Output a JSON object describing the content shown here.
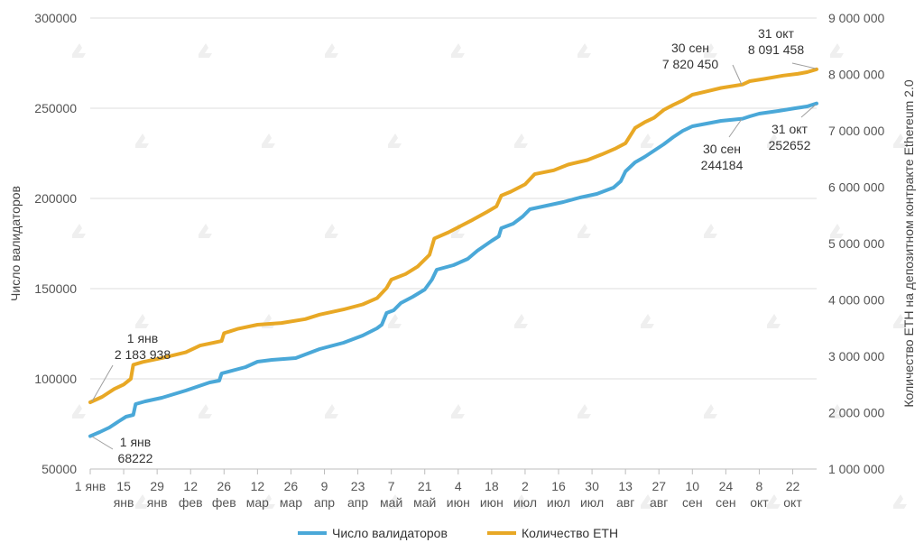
{
  "chart_data": {
    "type": "line",
    "ylabel": "Число валидаторов",
    "y2label": "Количество ETH на депозитном контракте Ethereum 2.0",
    "ylim": [
      50000,
      300000
    ],
    "y2lim": [
      1000000,
      9000000
    ],
    "yticks": [
      "50000",
      "100000",
      "150000",
      "200000",
      "250000",
      "300000"
    ],
    "y2ticks": [
      "1 000 000",
      "2 000 000",
      "3 000 000",
      "4 000 000",
      "5 000 000",
      "6 000 000",
      "7 000 000",
      "8 000 000",
      "9 000 000"
    ],
    "x_range_days": [
      0,
      304
    ],
    "x_ticks": [
      {
        "day": 0,
        "line1": "1 янв",
        "line2": ""
      },
      {
        "day": 14,
        "line1": "15",
        "line2": "янв"
      },
      {
        "day": 28,
        "line1": "29",
        "line2": "янв"
      },
      {
        "day": 42,
        "line1": "12",
        "line2": "фев"
      },
      {
        "day": 56,
        "line1": "26",
        "line2": "фев"
      },
      {
        "day": 70,
        "line1": "12",
        "line2": "мар"
      },
      {
        "day": 84,
        "line1": "26",
        "line2": "мар"
      },
      {
        "day": 98,
        "line1": "9",
        "line2": "апр"
      },
      {
        "day": 112,
        "line1": "23",
        "line2": "апр"
      },
      {
        "day": 126,
        "line1": "7",
        "line2": "май"
      },
      {
        "day": 140,
        "line1": "21",
        "line2": "май"
      },
      {
        "day": 154,
        "line1": "4",
        "line2": "июн"
      },
      {
        "day": 168,
        "line1": "18",
        "line2": "июн"
      },
      {
        "day": 182,
        "line1": "2",
        "line2": "июл"
      },
      {
        "day": 196,
        "line1": "16",
        "line2": "июл"
      },
      {
        "day": 210,
        "line1": "30",
        "line2": "июл"
      },
      {
        "day": 224,
        "line1": "13",
        "line2": "авг"
      },
      {
        "day": 238,
        "line1": "27",
        "line2": "авг"
      },
      {
        "day": 252,
        "line1": "10",
        "line2": "сен"
      },
      {
        "day": 266,
        "line1": "24",
        "line2": "сен"
      },
      {
        "day": 280,
        "line1": "8",
        "line2": "окт"
      },
      {
        "day": 294,
        "line1": "22",
        "line2": "окт"
      }
    ],
    "series": [
      {
        "name": "Число валидаторов",
        "color": "#4aa8d8",
        "axis": "left",
        "points": [
          [
            0,
            68222
          ],
          [
            4,
            70500
          ],
          [
            8,
            73000
          ],
          [
            12,
            76500
          ],
          [
            15,
            79000
          ],
          [
            18,
            80000
          ],
          [
            19,
            86000
          ],
          [
            23,
            87500
          ],
          [
            30,
            89500
          ],
          [
            40,
            93500
          ],
          [
            50,
            98000
          ],
          [
            54,
            99000
          ],
          [
            55,
            103000
          ],
          [
            65,
            106500
          ],
          [
            70,
            109500
          ],
          [
            76,
            110500
          ],
          [
            86,
            111500
          ],
          [
            96,
            116500
          ],
          [
            106,
            120000
          ],
          [
            114,
            124000
          ],
          [
            120,
            128000
          ],
          [
            122,
            130000
          ],
          [
            124,
            136500
          ],
          [
            127,
            138000
          ],
          [
            130,
            142000
          ],
          [
            135,
            145500
          ],
          [
            140,
            149500
          ],
          [
            143,
            155000
          ],
          [
            145,
            160500
          ],
          [
            152,
            163000
          ],
          [
            158,
            166500
          ],
          [
            162,
            171000
          ],
          [
            168,
            176500
          ],
          [
            171,
            179000
          ],
          [
            172,
            183500
          ],
          [
            177,
            186000
          ],
          [
            181,
            190000
          ],
          [
            184,
            194000
          ],
          [
            191,
            196000
          ],
          [
            198,
            198000
          ],
          [
            205,
            200500
          ],
          [
            212,
            202500
          ],
          [
            219,
            206000
          ],
          [
            222,
            209500
          ],
          [
            224,
            215000
          ],
          [
            228,
            220000
          ],
          [
            232,
            223000
          ],
          [
            236,
            226500
          ],
          [
            240,
            230000
          ],
          [
            244,
            234000
          ],
          [
            248,
            237500
          ],
          [
            252,
            240000
          ],
          [
            258,
            241500
          ],
          [
            264,
            243000
          ],
          [
            273,
            244184
          ],
          [
            276,
            245500
          ],
          [
            280,
            247000
          ],
          [
            288,
            248500
          ],
          [
            295,
            250000
          ],
          [
            300,
            251000
          ],
          [
            304,
            252652
          ]
        ]
      },
      {
        "name": "Количество ETH",
        "color": "#e8a825",
        "axis": "right",
        "points": [
          [
            0,
            2183938
          ],
          [
            5,
            2280000
          ],
          [
            10,
            2420000
          ],
          [
            14,
            2500000
          ],
          [
            17,
            2600000
          ],
          [
            18,
            2850000
          ],
          [
            22,
            2900000
          ],
          [
            30,
            2970000
          ],
          [
            40,
            3070000
          ],
          [
            46,
            3190000
          ],
          [
            55,
            3270000
          ],
          [
            56,
            3410000
          ],
          [
            62,
            3490000
          ],
          [
            70,
            3560000
          ],
          [
            80,
            3590000
          ],
          [
            90,
            3660000
          ],
          [
            96,
            3740000
          ],
          [
            106,
            3830000
          ],
          [
            114,
            3920000
          ],
          [
            120,
            4030000
          ],
          [
            124,
            4210000
          ],
          [
            126,
            4360000
          ],
          [
            132,
            4460000
          ],
          [
            137,
            4590000
          ],
          [
            142,
            4800000
          ],
          [
            144,
            5090000
          ],
          [
            150,
            5200000
          ],
          [
            155,
            5310000
          ],
          [
            160,
            5420000
          ],
          [
            166,
            5560000
          ],
          [
            170,
            5660000
          ],
          [
            172,
            5850000
          ],
          [
            176,
            5920000
          ],
          [
            182,
            6050000
          ],
          [
            186,
            6230000
          ],
          [
            194,
            6300000
          ],
          [
            200,
            6400000
          ],
          [
            208,
            6480000
          ],
          [
            214,
            6580000
          ],
          [
            220,
            6690000
          ],
          [
            224,
            6780000
          ],
          [
            228,
            7050000
          ],
          [
            232,
            7150000
          ],
          [
            236,
            7230000
          ],
          [
            240,
            7370000
          ],
          [
            244,
            7460000
          ],
          [
            248,
            7540000
          ],
          [
            252,
            7640000
          ],
          [
            258,
            7700000
          ],
          [
            264,
            7760000
          ],
          [
            273,
            7820450
          ],
          [
            276,
            7880000
          ],
          [
            282,
            7920000
          ],
          [
            290,
            7980000
          ],
          [
            296,
            8010000
          ],
          [
            300,
            8040000
          ],
          [
            304,
            8091458
          ]
        ]
      }
    ],
    "annotations": [
      {
        "id": "ann-eth-start",
        "series": 1,
        "day": 0,
        "value": 2183938,
        "line1": "1 янв",
        "line2": "2 183 938"
      },
      {
        "id": "ann-val-start",
        "series": 0,
        "day": 0,
        "value": 68222,
        "line1": "1 янв",
        "line2": "68222"
      },
      {
        "id": "ann-eth-sep",
        "series": 1,
        "day": 273,
        "value": 7820450,
        "line1": "30 сен",
        "line2": "7 820 450"
      },
      {
        "id": "ann-eth-oct",
        "series": 1,
        "day": 304,
        "value": 8091458,
        "line1": "31 окт",
        "line2": "8 091 458"
      },
      {
        "id": "ann-val-sep",
        "series": 0,
        "day": 273,
        "value": 244184,
        "line1": "30 сен",
        "line2": "244184"
      },
      {
        "id": "ann-val-oct",
        "series": 0,
        "day": 304,
        "value": 252652,
        "line1": "31 окт",
        "line2": "252652"
      }
    ],
    "legend": [
      {
        "label": "Число валидаторов",
        "color": "#4aa8d8"
      },
      {
        "label": "Количество ETH",
        "color": "#e8a825"
      }
    ],
    "legend_position": "bottom-center",
    "grid": true
  }
}
